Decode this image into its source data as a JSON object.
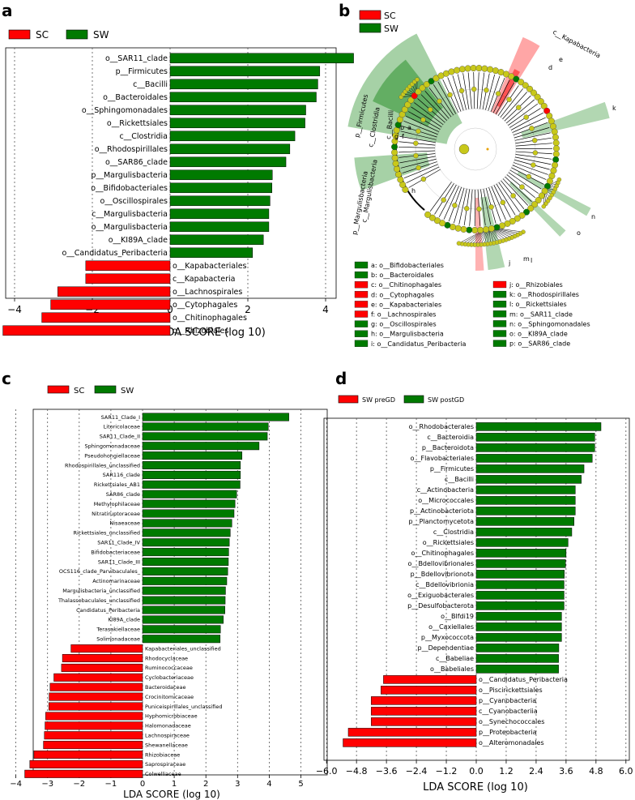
{
  "colors": {
    "sc": "#ff0000",
    "sw": "#007a00",
    "node_yellow": "#c8c81a",
    "edge": "#000000"
  },
  "panels": {
    "a": {
      "letter": "a",
      "legend": [
        {
          "label": "SC",
          "color": "#ff0000"
        },
        {
          "label": "SW",
          "color": "#007a00"
        }
      ],
      "xlabel": "LDA SCORE (log 10)"
    },
    "b": {
      "letter": "b",
      "legend": [
        {
          "label": "SC",
          "color": "#ff0000"
        },
        {
          "label": "SW",
          "color": "#007a00"
        }
      ],
      "clade_labels": [
        "c__Kapabacteria",
        "p__Firmicutes",
        "c__Clostridia",
        "c__Bacilli",
        "p__Margulisbacteria",
        "c__Margulisbacteria"
      ],
      "short_labels": [
        "e",
        "d",
        "a",
        "b",
        "g",
        "f",
        "h",
        "k",
        "n",
        "o",
        "m",
        "l",
        "j"
      ],
      "key_left": [
        {
          "text": "a: o__Bifidobacteriales",
          "color": "#007a00"
        },
        {
          "text": "b: o__Bacteroidales",
          "color": "#007a00"
        },
        {
          "text": "c: o__Chitinophagales",
          "color": "#ff0000"
        },
        {
          "text": "d: o__Cytophagales",
          "color": "#ff0000"
        },
        {
          "text": "e: o__Kapabacteriales",
          "color": "#ff0000"
        },
        {
          "text": "f: o__Lachnospirales",
          "color": "#ff0000"
        },
        {
          "text": "g: o__Oscillospirales",
          "color": "#007a00"
        },
        {
          "text": "h: o__Margulisbacteria",
          "color": "#007a00"
        },
        {
          "text": "i: o__Candidatus_Peribacteria",
          "color": "#007a00"
        }
      ],
      "key_right": [
        {
          "text": "j: o__Rhizobiales",
          "color": "#ff0000"
        },
        {
          "text": "k: o__Rhodospirillales",
          "color": "#007a00"
        },
        {
          "text": "l: o__Rickettsiales",
          "color": "#007a00"
        },
        {
          "text": "m: o__SAR11_clade",
          "color": "#007a00"
        },
        {
          "text": "n: o__Sphingomonadales",
          "color": "#007a00"
        },
        {
          "text": "o: o__KI89A_clade",
          "color": "#007a00"
        },
        {
          "text": "p: o__SAR86_clade",
          "color": "#007a00"
        }
      ]
    },
    "c": {
      "letter": "c",
      "legend": [
        {
          "label": "SC",
          "color": "#ff0000"
        },
        {
          "label": "SW",
          "color": "#007a00"
        }
      ],
      "xlabel": "LDA SCORE (log 10)"
    },
    "d": {
      "letter": "d",
      "legend": [
        {
          "label": "SW preGD",
          "color": "#ff0000"
        },
        {
          "label": "SW postGD",
          "color": "#007a00"
        }
      ],
      "xlabel": "LDA SCORE (log 10)"
    }
  },
  "chart_data": [
    {
      "panel": "a",
      "type": "bar",
      "orientation": "horizontal",
      "xlabel": "LDA SCORE (log 10)",
      "xlim": [
        -4.4,
        4.9
      ],
      "xticks": [
        -4,
        -2,
        0,
        2,
        4
      ],
      "grid": true,
      "legend": "top-left",
      "series": [
        {
          "name": "SC",
          "color": "#ff0000"
        },
        {
          "name": "SW",
          "color": "#007a00"
        }
      ],
      "bars": [
        {
          "label": "o__SAR11_clade",
          "value": 4.72,
          "group": "SW"
        },
        {
          "label": "p__Firmicutes",
          "value": 3.85,
          "group": "SW"
        },
        {
          "label": "c__Bacilli",
          "value": 3.8,
          "group": "SW"
        },
        {
          "label": "o__Bacteroidales",
          "value": 3.76,
          "group": "SW"
        },
        {
          "label": "o__Sphingomonadales",
          "value": 3.49,
          "group": "SW"
        },
        {
          "label": "o__Rickettsiales",
          "value": 3.47,
          "group": "SW"
        },
        {
          "label": "c__Clostridia",
          "value": 3.21,
          "group": "SW"
        },
        {
          "label": "o__Rhodospirillales",
          "value": 3.08,
          "group": "SW"
        },
        {
          "label": "o__SAR86_clade",
          "value": 2.98,
          "group": "SW"
        },
        {
          "label": "p__Margulisbacteria",
          "value": 2.63,
          "group": "SW"
        },
        {
          "label": "o__Bifidobacteriales",
          "value": 2.62,
          "group": "SW"
        },
        {
          "label": "o__Oscillospirales",
          "value": 2.57,
          "group": "SW"
        },
        {
          "label": "c__Margulisbacteria",
          "value": 2.54,
          "group": "SW"
        },
        {
          "label": "o__Margulisbacteria",
          "value": 2.54,
          "group": "SW"
        },
        {
          "label": "o__KI89A_clade",
          "value": 2.4,
          "group": "SW"
        },
        {
          "label": "o__Candidatus_Peribacteria",
          "value": 2.12,
          "group": "SW"
        },
        {
          "label": "o__Kapabacteriales",
          "value": -2.17,
          "group": "SC"
        },
        {
          "label": "c__Kapabacteria",
          "value": -2.17,
          "group": "SC"
        },
        {
          "label": "o__Lachnospirales",
          "value": -2.89,
          "group": "SC"
        },
        {
          "label": "o__Cytophagales",
          "value": -3.07,
          "group": "SC"
        },
        {
          "label": "o__Chitinophagales",
          "value": -3.3,
          "group": "SC"
        },
        {
          "label": "o__Rhizobiales",
          "value": -4.3,
          "group": "SC"
        }
      ]
    },
    {
      "panel": "c",
      "type": "bar",
      "orientation": "horizontal",
      "xlabel": "LDA SCORE (log 10)",
      "xlim": [
        -4.3,
        5.6
      ],
      "xticks": [
        -4,
        -3,
        -2,
        -1,
        0,
        1,
        2,
        3,
        4,
        5
      ],
      "grid": true,
      "legend": "top-left",
      "series": [
        {
          "name": "SC",
          "color": "#ff0000"
        },
        {
          "name": "SW",
          "color": "#007a00"
        }
      ],
      "bars": [
        {
          "label": "SAR11_Clade_I",
          "value": 4.62,
          "group": "SW"
        },
        {
          "label": "Litoricolaceae",
          "value": 3.97,
          "group": "SW"
        },
        {
          "label": "SAR11_Clade_II",
          "value": 3.94,
          "group": "SW"
        },
        {
          "label": "Sphingomonadaceae",
          "value": 3.68,
          "group": "SW"
        },
        {
          "label": "Pseudohongiellaceae",
          "value": 3.14,
          "group": "SW"
        },
        {
          "label": "Rhodospirillales_unclassified",
          "value": 3.09,
          "group": "SW"
        },
        {
          "label": "SAR116_clade",
          "value": 3.09,
          "group": "SW"
        },
        {
          "label": "Rickettsiales_AB1",
          "value": 3.08,
          "group": "SW"
        },
        {
          "label": "SAR86_clade",
          "value": 2.97,
          "group": "SW"
        },
        {
          "label": "Methylophilaceae",
          "value": 2.92,
          "group": "SW"
        },
        {
          "label": "Nitratiruptoraceae",
          "value": 2.89,
          "group": "SW"
        },
        {
          "label": "Nisaeaceae",
          "value": 2.82,
          "group": "SW"
        },
        {
          "label": "Rickettsiales_unclassified",
          "value": 2.77,
          "group": "SW"
        },
        {
          "label": "SAR11_Clade_IV",
          "value": 2.74,
          "group": "SW"
        },
        {
          "label": "Bifidobacteriaceae",
          "value": 2.72,
          "group": "SW"
        },
        {
          "label": "SAR11_Clade_III",
          "value": 2.71,
          "group": "SW"
        },
        {
          "label": "OCS116_clade_Parvibaculales_",
          "value": 2.69,
          "group": "SW"
        },
        {
          "label": "Actinomarinaceae",
          "value": 2.66,
          "group": "SW"
        },
        {
          "label": "Margulisbacteria_unclassified",
          "value": 2.62,
          "group": "SW"
        },
        {
          "label": "Thalassobaculales_unclassified",
          "value": 2.61,
          "group": "SW"
        },
        {
          "label": "Candidatus_Peribacteria",
          "value": 2.6,
          "group": "SW"
        },
        {
          "label": "KI89A_clade",
          "value": 2.55,
          "group": "SW"
        },
        {
          "label": "Terasakiellaceae",
          "value": 2.46,
          "group": "SW"
        },
        {
          "label": "Solimonadaceae",
          "value": 2.45,
          "group": "SW"
        },
        {
          "label": "Kapabacteriales_unclassified",
          "value": -2.26,
          "group": "SC"
        },
        {
          "label": "Rhodocyclaceae",
          "value": -2.53,
          "group": "SC"
        },
        {
          "label": "Ruminococcaceae",
          "value": -2.56,
          "group": "SC"
        },
        {
          "label": "Cyclobacteriaceae",
          "value": -2.8,
          "group": "SC"
        },
        {
          "label": "Bacteroidaceae",
          "value": -2.92,
          "group": "SC"
        },
        {
          "label": "Crocinitomicaceae",
          "value": -2.95,
          "group": "SC"
        },
        {
          "label": "Puniceispirillales_unclassified",
          "value": -2.96,
          "group": "SC"
        },
        {
          "label": "Hyphomicrobiaceae",
          "value": -3.06,
          "group": "SC"
        },
        {
          "label": "Halomonadaceae",
          "value": -3.08,
          "group": "SC"
        },
        {
          "label": "Lachnospiraceae",
          "value": -3.1,
          "group": "SC"
        },
        {
          "label": "Shewanellaceae",
          "value": -3.13,
          "group": "SC"
        },
        {
          "label": "Rhizobiaceae",
          "value": -3.43,
          "group": "SC"
        },
        {
          "label": "Saprospiraceae",
          "value": -3.56,
          "group": "SC"
        },
        {
          "label": "Colwelliaceae",
          "value": -3.72,
          "group": "SC"
        }
      ]
    },
    {
      "panel": "d",
      "type": "bar",
      "orientation": "horizontal",
      "xlabel": "LDA SCORE (log 10)",
      "xlim": [
        -6.0,
        6.0
      ],
      "xticks": [
        "−6.0",
        "−4.8",
        "−3.6",
        "−2.4",
        "−1.2",
        "0.0",
        "1.2",
        "2.4",
        "3.6",
        "4.8",
        "6.0"
      ],
      "grid": true,
      "legend": "top-left",
      "series": [
        {
          "name": "SW preGD",
          "color": "#ff0000"
        },
        {
          "name": "SW postGD",
          "color": "#007a00"
        }
      ],
      "bars": [
        {
          "label": "o__Rhodobacterales",
          "value": 5.0,
          "group": "SW postGD"
        },
        {
          "label": "c__Bacteroidia",
          "value": 4.75,
          "group": "SW postGD"
        },
        {
          "label": "p__Bacteroidota",
          "value": 4.75,
          "group": "SW postGD"
        },
        {
          "label": "o__Flavobacteriales",
          "value": 4.65,
          "group": "SW postGD"
        },
        {
          "label": "p__Firmicutes",
          "value": 4.32,
          "group": "SW postGD"
        },
        {
          "label": "c__Bacilli",
          "value": 4.21,
          "group": "SW postGD"
        },
        {
          "label": "c__Actinobacteria",
          "value": 3.97,
          "group": "SW postGD"
        },
        {
          "label": "o__Micrococcales",
          "value": 3.97,
          "group": "SW postGD"
        },
        {
          "label": "p__Actinobacteriota",
          "value": 3.97,
          "group": "SW postGD"
        },
        {
          "label": "p__Planctomycetota",
          "value": 3.92,
          "group": "SW postGD"
        },
        {
          "label": "c__Clostridia",
          "value": 3.83,
          "group": "SW postGD"
        },
        {
          "label": "o__Rickettsiales",
          "value": 3.68,
          "group": "SW postGD"
        },
        {
          "label": "o__Chitinophagales",
          "value": 3.6,
          "group": "SW postGD"
        },
        {
          "label": "o__Bdellovibrionales",
          "value": 3.58,
          "group": "SW postGD"
        },
        {
          "label": "p__Bdellovibrionota",
          "value": 3.53,
          "group": "SW postGD"
        },
        {
          "label": "c__Bdellovibrionia",
          "value": 3.52,
          "group": "SW postGD"
        },
        {
          "label": "o__Exiguobacterales",
          "value": 3.52,
          "group": "SW postGD"
        },
        {
          "label": "p__Desulfobacterota",
          "value": 3.52,
          "group": "SW postGD"
        },
        {
          "label": "o__Blfdi19",
          "value": 3.42,
          "group": "SW postGD"
        },
        {
          "label": "o__Caxiellales",
          "value": 3.42,
          "group": "SW postGD"
        },
        {
          "label": "p__Myxococcota",
          "value": 3.42,
          "group": "SW postGD"
        },
        {
          "label": "p__Dependentiae",
          "value": 3.31,
          "group": "SW postGD"
        },
        {
          "label": "c__Babeliae",
          "value": 3.3,
          "group": "SW postGD"
        },
        {
          "label": "o__Babeliales",
          "value": 3.3,
          "group": "SW postGD"
        },
        {
          "label": "o__Candidatus_Peribacteria",
          "value": -3.72,
          "group": "SW preGD"
        },
        {
          "label": "o__Piscirickettsiales",
          "value": -3.82,
          "group": "SW preGD"
        },
        {
          "label": "p__Cyanobacteria",
          "value": -4.21,
          "group": "SW preGD"
        },
        {
          "label": "c__Cyanobacteriia",
          "value": -4.21,
          "group": "SW preGD"
        },
        {
          "label": "o__Synechococcales",
          "value": -4.21,
          "group": "SW preGD"
        },
        {
          "label": "p__Proteobacteria",
          "value": -5.13,
          "group": "SW preGD"
        },
        {
          "label": "o__Alteromonadales",
          "value": -5.34,
          "group": "SW preGD"
        }
      ]
    }
  ]
}
